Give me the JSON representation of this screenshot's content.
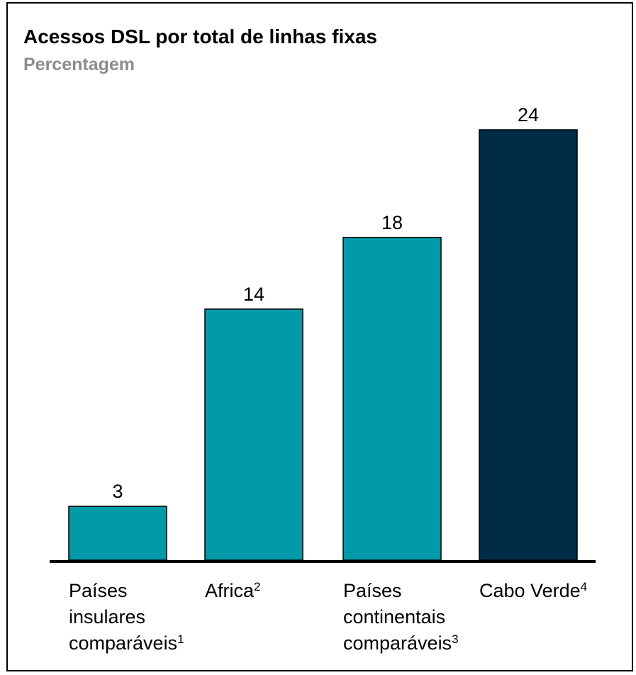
{
  "chart_data": {
    "type": "bar",
    "title": "Acessos DSL por total de linhas fixas",
    "subtitle": "Percentagem",
    "categories": [
      {
        "lines": [
          "Países",
          "insulares",
          "comparáveis"
        ],
        "note": "1"
      },
      {
        "lines": [
          "Africa"
        ],
        "note": "2"
      },
      {
        "lines": [
          "Países",
          "continentais",
          "comparáveis"
        ],
        "note": "3"
      },
      {
        "lines": [
          "Cabo Verde"
        ],
        "note": "4"
      }
    ],
    "values": [
      3,
      14,
      18,
      24
    ],
    "value_labels": [
      "3",
      "14",
      "18",
      "24"
    ],
    "colors": [
      "#009aa8",
      "#009aa8",
      "#009aa8",
      "#012c46"
    ],
    "ylim": [
      0,
      24
    ],
    "grid": false,
    "legend": "none"
  }
}
